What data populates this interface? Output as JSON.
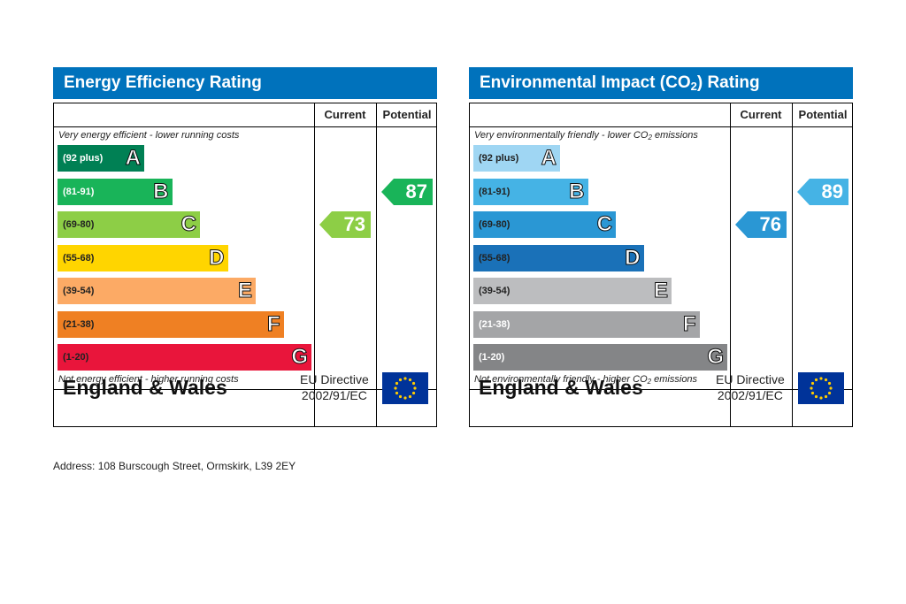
{
  "charts": [
    {
      "title_pre": "Energy Efficiency Rating",
      "title_sub": "",
      "title_post": "",
      "col_current": "Current",
      "col_potential": "Potential",
      "top_note": "Very energy efficient - lower running costs",
      "top_note_pre": "",
      "top_note_post": "",
      "bottom_note": "Not energy efficient - higher running costs",
      "bottom_note_pre": "",
      "bottom_note_post": "",
      "bands": [
        {
          "range": "(92 plus)",
          "letter": "A",
          "color": "#008054",
          "text_color": "#ffffff"
        },
        {
          "range": "(81-91)",
          "letter": "B",
          "color": "#19b459",
          "text_color": "#ffffff"
        },
        {
          "range": "(69-80)",
          "letter": "C",
          "color": "#8dce46",
          "text_color": "#222222"
        },
        {
          "range": "(55-68)",
          "letter": "D",
          "color": "#ffd500",
          "text_color": "#222222"
        },
        {
          "range": "(39-54)",
          "letter": "E",
          "color": "#fcaa65",
          "text_color": "#222222"
        },
        {
          "range": "(21-38)",
          "letter": "F",
          "color": "#ef8023",
          "text_color": "#222222"
        },
        {
          "range": "(1-20)",
          "letter": "G",
          "color": "#e9153b",
          "text_color": "#222222"
        }
      ],
      "current": {
        "value": "73",
        "band": "C",
        "color": "#8dce46"
      },
      "potential": {
        "value": "87",
        "band": "B",
        "color": "#19b459"
      },
      "footer_region": "England & Wales",
      "footer_directive_line1": "EU Directive",
      "footer_directive_line2": "2002/91/EC"
    },
    {
      "title_pre": "Environmental Impact (CO",
      "title_sub": "2",
      "title_post": ") Rating",
      "col_current": "Current",
      "col_potential": "Potential",
      "top_note": "",
      "top_note_pre": "Very environmentally friendly - lower CO",
      "top_note_post": " emissions",
      "bottom_note": "",
      "bottom_note_pre": "Not environmentally friendly - higher CO",
      "bottom_note_post": " emissions",
      "bands": [
        {
          "range": "(92 plus)",
          "letter": "A",
          "color": "#9fd6f3",
          "text_color": "#222222"
        },
        {
          "range": "(81-91)",
          "letter": "B",
          "color": "#45b3e5",
          "text_color": "#222222"
        },
        {
          "range": "(69-80)",
          "letter": "C",
          "color": "#2a97d4",
          "text_color": "#222222"
        },
        {
          "range": "(55-68)",
          "letter": "D",
          "color": "#1a71b8",
          "text_color": "#222222"
        },
        {
          "range": "(39-54)",
          "letter": "E",
          "color": "#bcbdbf",
          "text_color": "#222222"
        },
        {
          "range": "(21-38)",
          "letter": "F",
          "color": "#a4a5a7",
          "text_color": "#ffffff"
        },
        {
          "range": "(1-20)",
          "letter": "G",
          "color": "#848587",
          "text_color": "#ffffff"
        }
      ],
      "current": {
        "value": "76",
        "band": "C",
        "color": "#2a97d4"
      },
      "potential": {
        "value": "89",
        "band": "B",
        "color": "#45b3e5"
      },
      "footer_region": "England & Wales",
      "footer_directive_line1": "EU Directive",
      "footer_directive_line2": "2002/91/EC"
    }
  ],
  "co2_subscript": "2",
  "address": "Address: 108 Burscough Street, Ormskirk, L39 2EY",
  "colors": {
    "title_bar": "#0072bc",
    "eu_flag_blue": "#003399",
    "eu_star": "#ffcc00"
  },
  "icons": {
    "eu_flag": "eu-flag-icon"
  }
}
